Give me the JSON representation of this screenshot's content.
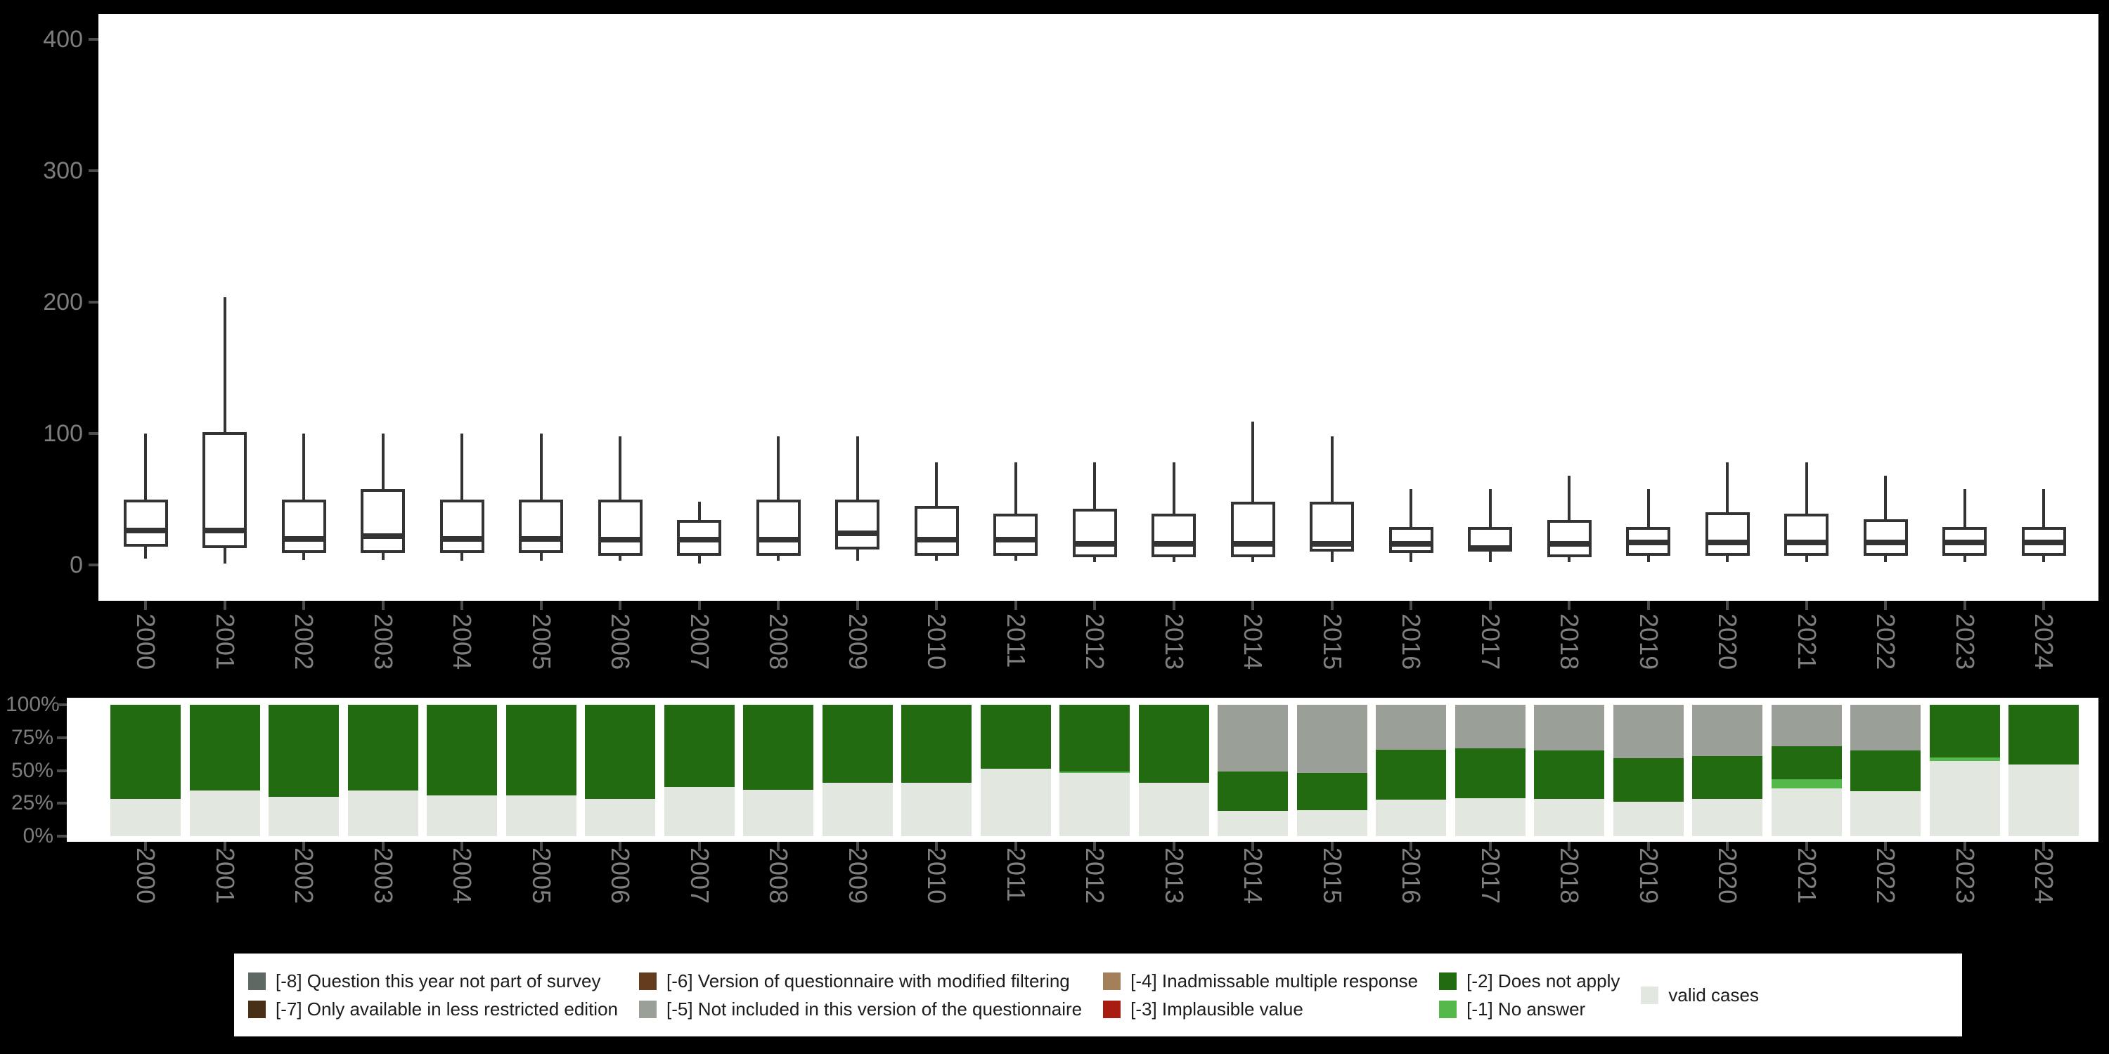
{
  "palette": {
    "background": "#000000",
    "panel_background": "#ffffff",
    "box_stroke": "#333333",
    "axis_tick": "#4d4d4d",
    "axis_label": "#7d7d7d",
    "legend_background": "#ffffff",
    "legend_text": "#1c1c1c"
  },
  "chart_data": [
    {
      "type": "boxplot",
      "title": "",
      "xlabel": "",
      "ylabel": "",
      "categories": [
        "2000",
        "2001",
        "2002",
        "2003",
        "2004",
        "2005",
        "2006",
        "2007",
        "2008",
        "2009",
        "2010",
        "2011",
        "2012",
        "2013",
        "2014",
        "2015",
        "2016",
        "2017",
        "2018",
        "2019",
        "2020",
        "2021",
        "2022",
        "2023",
        "2024"
      ],
      "yticks": [
        0,
        100,
        200,
        300,
        400
      ],
      "ylim": [
        -27,
        419
      ],
      "grid": false,
      "stats": [
        {
          "year": "2000",
          "min": 5,
          "q1": 14,
          "median": 26,
          "q3": 50,
          "max": 100
        },
        {
          "year": "2001",
          "min": 1,
          "q1": 13,
          "median": 26,
          "q3": 101,
          "max": 204
        },
        {
          "year": "2002",
          "min": 4,
          "q1": 9,
          "median": 20,
          "q3": 50,
          "max": 100
        },
        {
          "year": "2003",
          "min": 4,
          "q1": 9,
          "median": 22,
          "q3": 58,
          "max": 100
        },
        {
          "year": "2004",
          "min": 3,
          "q1": 9,
          "median": 20,
          "q3": 50,
          "max": 100
        },
        {
          "year": "2005",
          "min": 3,
          "q1": 9,
          "median": 20,
          "q3": 50,
          "max": 100
        },
        {
          "year": "2006",
          "min": 3,
          "q1": 7,
          "median": 19,
          "q3": 50,
          "max": 98
        },
        {
          "year": "2007",
          "min": 1,
          "q1": 7,
          "median": 19,
          "q3": 34,
          "max": 48
        },
        {
          "year": "2008",
          "min": 3,
          "q1": 7,
          "median": 19,
          "q3": 50,
          "max": 98
        },
        {
          "year": "2009",
          "min": 3,
          "q1": 12,
          "median": 24,
          "q3": 50,
          "max": 98
        },
        {
          "year": "2010",
          "min": 3,
          "q1": 7,
          "median": 19,
          "q3": 45,
          "max": 78
        },
        {
          "year": "2011",
          "min": 3,
          "q1": 7,
          "median": 19,
          "q3": 39,
          "max": 78
        },
        {
          "year": "2012",
          "min": 2,
          "q1": 6,
          "median": 16,
          "q3": 43,
          "max": 78
        },
        {
          "year": "2013",
          "min": 2,
          "q1": 6,
          "median": 16,
          "q3": 39,
          "max": 78
        },
        {
          "year": "2014",
          "min": 2,
          "q1": 6,
          "median": 16,
          "q3": 48,
          "max": 109
        },
        {
          "year": "2015",
          "min": 2,
          "q1": 10,
          "median": 16,
          "q3": 48,
          "max": 98
        },
        {
          "year": "2016",
          "min": 2,
          "q1": 9,
          "median": 16,
          "q3": 29,
          "max": 58
        },
        {
          "year": "2017",
          "min": 2,
          "q1": 10,
          "median": 13,
          "q3": 29,
          "max": 58
        },
        {
          "year": "2018",
          "min": 2,
          "q1": 6,
          "median": 16,
          "q3": 34,
          "max": 68
        },
        {
          "year": "2019",
          "min": 2,
          "q1": 7,
          "median": 17,
          "q3": 29,
          "max": 58
        },
        {
          "year": "2020",
          "min": 2,
          "q1": 7,
          "median": 17,
          "q3": 40,
          "max": 78
        },
        {
          "year": "2021",
          "min": 2,
          "q1": 7,
          "median": 17,
          "q3": 39,
          "max": 78
        },
        {
          "year": "2022",
          "min": 2,
          "q1": 7,
          "median": 17,
          "q3": 35,
          "max": 68
        },
        {
          "year": "2023",
          "min": 2,
          "q1": 7,
          "median": 17,
          "q3": 29,
          "max": 58
        },
        {
          "year": "2024",
          "min": 2,
          "q1": 7,
          "median": 17,
          "q3": 29,
          "max": 58
        }
      ]
    },
    {
      "type": "bar",
      "stacked": true,
      "unit": "percent",
      "title": "",
      "xlabel": "",
      "ylabel": "",
      "categories": [
        "2000",
        "2001",
        "2002",
        "2003",
        "2004",
        "2005",
        "2006",
        "2007",
        "2008",
        "2009",
        "2010",
        "2011",
        "2012",
        "2013",
        "2014",
        "2015",
        "2016",
        "2017",
        "2018",
        "2019",
        "2020",
        "2021",
        "2022",
        "2023",
        "2024"
      ],
      "yticks_percent": [
        0,
        25,
        50,
        75,
        100
      ],
      "ylim": [
        0,
        100
      ],
      "grid": false,
      "series": [
        {
          "name": "valid cases",
          "color": "#e2e7e0",
          "values": [
            28.5,
            35,
            30,
            34.5,
            31,
            31,
            28.5,
            37.5,
            35.5,
            40.5,
            40.5,
            51.5,
            48,
            40.5,
            19.5,
            20,
            28,
            29,
            28.5,
            26,
            28.5,
            36.5,
            34,
            57,
            54.5
          ]
        },
        {
          "name": "[-1] No answer",
          "color": "#55b84a",
          "values": [
            0,
            0,
            0,
            0,
            0,
            0,
            0,
            0,
            0,
            0,
            0,
            0,
            1,
            0,
            0,
            0,
            0,
            0,
            0,
            0,
            0,
            7,
            0,
            3,
            0
          ]
        },
        {
          "name": "[-2] Does not apply",
          "color": "#226b10",
          "values": [
            71.5,
            65,
            70,
            65.5,
            69,
            69,
            71.5,
            62.5,
            64.5,
            59.5,
            59.5,
            48.5,
            51,
            59.5,
            29.5,
            28,
            38,
            38,
            37,
            33.5,
            32.5,
            25,
            31,
            40,
            45.5
          ]
        },
        {
          "name": "[-5] Not included in this version of the questionnaire",
          "color": "#9aa097",
          "values": [
            0,
            0,
            0,
            0,
            0,
            0,
            0,
            0,
            0,
            0,
            0,
            0,
            0,
            0,
            51,
            52,
            34,
            33,
            34.5,
            40.5,
            39,
            31.5,
            35,
            0,
            0
          ]
        }
      ]
    }
  ],
  "legend": {
    "columns": [
      [
        "m8",
        "m7"
      ],
      [
        "m6",
        "m5"
      ],
      [
        "m4",
        "m3"
      ],
      [
        "m2",
        "m1"
      ],
      [
        "valid"
      ]
    ],
    "items": {
      "m8": {
        "label": "[-8] Question this year not part of survey",
        "color": "#5d6962"
      },
      "m7": {
        "label": "[-7] Only available in less restricted edition",
        "color": "#4a2f17"
      },
      "m6": {
        "label": "[-6] Version of questionnaire with modified filtering",
        "color": "#633d1e"
      },
      "m5": {
        "label": "[-5] Not included in this version of the questionnaire",
        "color": "#9aa097"
      },
      "m4": {
        "label": "[-4] Inadmissable multiple response",
        "color": "#a3805a"
      },
      "m3": {
        "label": "[-3] Implausible value",
        "color": "#a91c12"
      },
      "m2": {
        "label": "[-2] Does not apply",
        "color": "#226b10"
      },
      "m1": {
        "label": "[-1] No answer",
        "color": "#55b84a"
      },
      "valid": {
        "label": "valid cases",
        "color": "#e2e7e0"
      }
    }
  },
  "axes": {
    "top_ytick_labels": [
      "0",
      "100",
      "200",
      "300",
      "400"
    ],
    "bottom_ytick_labels": [
      "0%",
      "25%",
      "50%",
      "75%",
      "100%"
    ]
  }
}
